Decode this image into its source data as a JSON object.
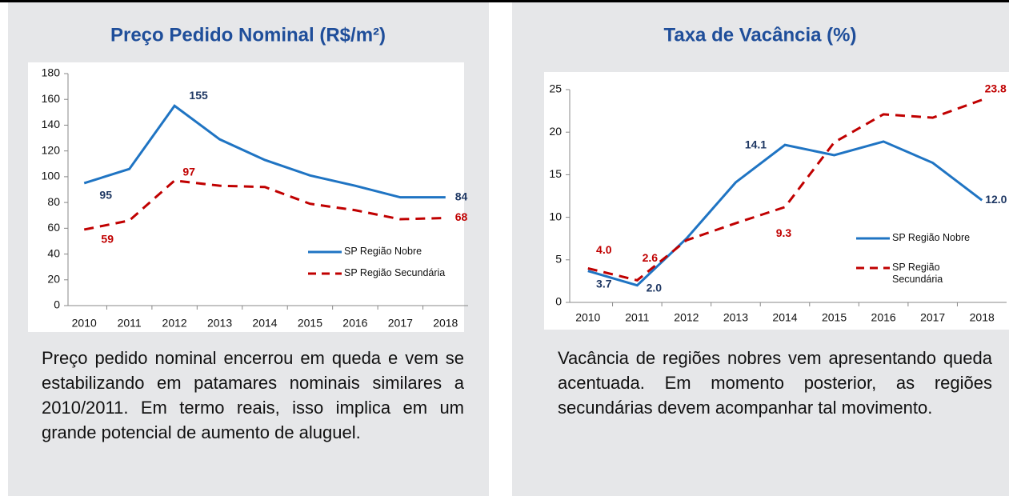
{
  "chart_data": [
    {
      "type": "line",
      "title": "Preço Pedido Nominal (R$/m²)",
      "categories": [
        "2010",
        "2011",
        "2012",
        "2013",
        "2014",
        "2015",
        "2016",
        "2017",
        "2018"
      ],
      "series": [
        {
          "name": "SP Região Nobre",
          "color": "#1f74c3",
          "dash": false,
          "values": [
            95,
            106,
            155,
            129,
            113,
            101,
            93,
            84,
            84
          ],
          "value_labels": [
            "95",
            null,
            "155",
            null,
            null,
            null,
            null,
            null,
            "84"
          ]
        },
        {
          "name": "SP Região Secundária",
          "color": "#c00000",
          "dash": true,
          "values": [
            59,
            66,
            97,
            93,
            92,
            79,
            74,
            67,
            68
          ],
          "value_labels": [
            "59",
            null,
            "97",
            null,
            null,
            null,
            null,
            null,
            "68"
          ]
        }
      ],
      "ylim": [
        0,
        180
      ],
      "yticks": [
        0,
        20,
        40,
        60,
        80,
        100,
        120,
        140,
        160,
        180
      ],
      "caption": "Preço pedido nominal encerrou em queda e vem se estabilizando em patamares nominais similares a 2010/2011. Em termo reais, isso implica  em um grande potencial de aumento de aluguel."
    },
    {
      "type": "line",
      "title": "Taxa de Vacância (%)",
      "categories": [
        "2010",
        "2011",
        "2012",
        "2013",
        "2014",
        "2015",
        "2016",
        "2017",
        "2018"
      ],
      "series": [
        {
          "name": "SP Região Nobre",
          "color": "#1f74c3",
          "dash": false,
          "values": [
            3.7,
            2.0,
            7.5,
            14.1,
            18.5,
            17.3,
            18.9,
            16.4,
            12.0
          ],
          "value_labels": [
            "3.7",
            "2.0",
            null,
            "14.1",
            null,
            null,
            null,
            null,
            "12.0"
          ]
        },
        {
          "name": "SP Região Secundária",
          "color": "#c00000",
          "dash": true,
          "values": [
            4.0,
            2.6,
            7.3,
            9.3,
            11.2,
            18.8,
            22.1,
            21.7,
            23.8
          ],
          "value_labels": [
            "4.0",
            "2.6",
            null,
            "9.3",
            null,
            null,
            null,
            null,
            "23.8"
          ]
        }
      ],
      "ylim": [
        0,
        25
      ],
      "yticks": [
        0,
        5,
        10,
        15,
        20,
        25
      ],
      "caption": "Vacância de regiões nobres vem apresentando queda acentuada. Em momento posterior, as regiões secundárias devem acompanhar tal movimento."
    }
  ]
}
